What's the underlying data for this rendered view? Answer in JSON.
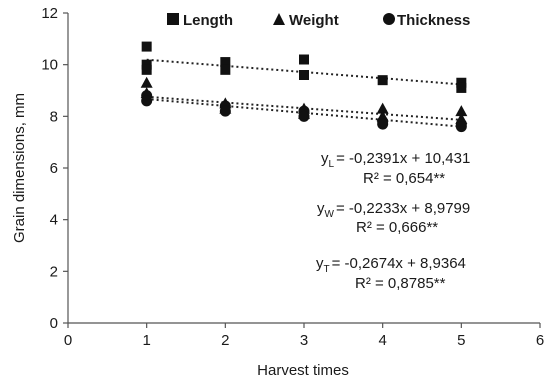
{
  "chart_data": {
    "type": "scatter",
    "xlabel": "Harvest times",
    "ylabel": "Grain dimensions, mm",
    "xlim": [
      0,
      6
    ],
    "ylim": [
      0,
      12
    ],
    "xticks": [
      0,
      1,
      2,
      3,
      4,
      5,
      6
    ],
    "yticks": [
      0,
      2,
      4,
      6,
      8,
      10,
      12
    ],
    "xtick_labels": [
      "0",
      "1",
      "2",
      "3",
      "4",
      "5",
      "6"
    ],
    "ytick_labels": [
      "0",
      "2",
      "4",
      "6",
      "8",
      "10",
      "12"
    ],
    "grid": false,
    "legend_position": "top",
    "series": [
      {
        "name": "Length",
        "marker": "square",
        "points": [
          {
            "x": 1,
            "y": 10.7
          },
          {
            "x": 1,
            "y": 10.0
          },
          {
            "x": 1,
            "y": 9.8
          },
          {
            "x": 2,
            "y": 10.1
          },
          {
            "x": 2,
            "y": 9.8
          },
          {
            "x": 3,
            "y": 10.2
          },
          {
            "x": 3,
            "y": 9.6
          },
          {
            "x": 4,
            "y": 9.4
          },
          {
            "x": 5,
            "y": 9.3
          },
          {
            "x": 5,
            "y": 9.1
          }
        ],
        "trendline": {
          "slope": -0.2391,
          "intercept": 10.431
        }
      },
      {
        "name": "Weight",
        "marker": "triangle",
        "points": [
          {
            "x": 1,
            "y": 9.3
          },
          {
            "x": 1,
            "y": 8.9
          },
          {
            "x": 2,
            "y": 8.5
          },
          {
            "x": 2,
            "y": 8.3
          },
          {
            "x": 3,
            "y": 8.3
          },
          {
            "x": 3,
            "y": 8.1
          },
          {
            "x": 4,
            "y": 8.3
          },
          {
            "x": 4,
            "y": 8.0
          },
          {
            "x": 5,
            "y": 8.2
          },
          {
            "x": 5,
            "y": 7.9
          }
        ],
        "trendline": {
          "slope": -0.2233,
          "intercept": 8.9799
        }
      },
      {
        "name": "Thickness",
        "marker": "circle",
        "points": [
          {
            "x": 1,
            "y": 8.8
          },
          {
            "x": 1,
            "y": 8.6
          },
          {
            "x": 2,
            "y": 8.4
          },
          {
            "x": 2,
            "y": 8.2
          },
          {
            "x": 3,
            "y": 8.2
          },
          {
            "x": 3,
            "y": 8.0
          },
          {
            "x": 4,
            "y": 7.8
          },
          {
            "x": 4,
            "y": 7.7
          },
          {
            "x": 5,
            "y": 7.7
          },
          {
            "x": 5,
            "y": 7.6
          }
        ],
        "trendline": {
          "slope": -0.2674,
          "intercept": 8.9364
        }
      }
    ],
    "annotations": [
      {
        "id": "length",
        "y_prefix": "y",
        "sub": "L",
        "equation": "= -0,2391x + 10,431",
        "r2": "R² = 0,654**"
      },
      {
        "id": "weight",
        "y_prefix": "y",
        "sub": "W",
        "equation": "= -0,2233x + 8,9799",
        "r2": "R² = 0,666**"
      },
      {
        "id": "thickness",
        "y_prefix": "y",
        "sub": "T",
        "equation": "= -0,2674x + 8,9364",
        "r2": "R² = 0,8785**"
      }
    ],
    "colors": {
      "marker": "#111111",
      "axis": "#555555",
      "trend": "#222222"
    }
  }
}
